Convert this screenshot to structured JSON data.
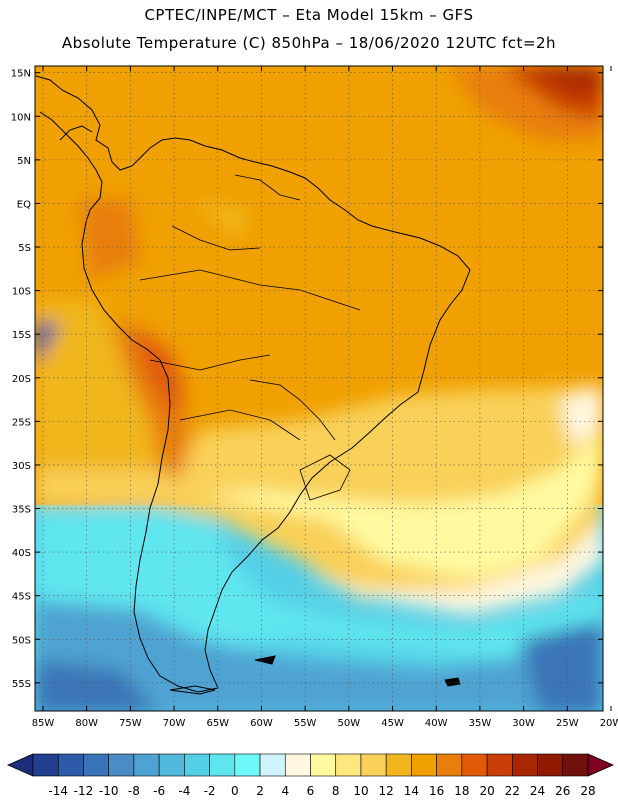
{
  "header": {
    "line1": "CPTEC/INPE/MCT –  Eta Model 15km – GFS",
    "line2": "Absolute Temperature (C) 850hPa – 18/06/2020 12UTC fct=2h"
  },
  "map": {
    "lon_labels": [
      "85W",
      "80W",
      "75W",
      "70W",
      "65W",
      "60W",
      "55W",
      "50W",
      "45W",
      "40W",
      "35W",
      "30W",
      "25W",
      "20W"
    ],
    "lat_labels": [
      "15N",
      "10N",
      "5N",
      "EQ",
      "5S",
      "10S",
      "15S",
      "20S",
      "25S",
      "30S",
      "35S",
      "40S",
      "45S",
      "50S",
      "55S"
    ],
    "lon_range": [
      -85,
      -20
    ],
    "lat_range": [
      -58,
      16
    ],
    "grid": "dotted",
    "field_colors_legend": "see colorbar"
  },
  "colorbar": {
    "labels": [
      "-14",
      "-12",
      "-10",
      "-8",
      "-6",
      "-4",
      "-2",
      "0",
      "2",
      "4",
      "6",
      "8",
      "10",
      "12",
      "14",
      "16",
      "18",
      "20",
      "22",
      "24",
      "26",
      "28"
    ],
    "colors": [
      "#23408e",
      "#2e5ba8",
      "#3a74b8",
      "#4c8cc6",
      "#4fa3d2",
      "#52b9dc",
      "#55cfe6",
      "#5ee6ef",
      "#6ef8f8",
      "#d0f4fc",
      "#fff7e0",
      "#fffaa0",
      "#fde880",
      "#f9d058",
      "#f1b61e",
      "#f0a000",
      "#e87e0c",
      "#e05a08",
      "#c83e06",
      "#a82602",
      "#901a00",
      "#70110e"
    ],
    "end_low": "#1c2e7a",
    "end_high": "#800020"
  }
}
